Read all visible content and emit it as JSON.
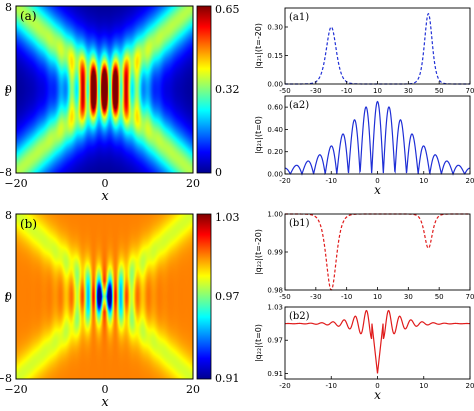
{
  "chart_data": [
    {
      "type": "heatmap",
      "panel_label": "(a)",
      "xlabel": "x",
      "ylabel": "t",
      "xticks": [
        "−20",
        "0",
        "20"
      ],
      "yticks": [
        "8",
        "0",
        "−8"
      ],
      "xlim": [
        -20,
        20
      ],
      "ylim": [
        -8,
        8
      ],
      "colorbar_ticks": [
        "0.65",
        "0.32",
        "0"
      ],
      "colorbar_range": [
        0,
        0.65
      ],
      "colormap": "jet",
      "peak": {
        "x": 0,
        "t": 0,
        "value": 0.65
      },
      "background_value": 0.0,
      "wave_velocities": [
        -2.5,
        2.5
      ],
      "ripple_wavenumber": 2.5
    },
    {
      "type": "heatmap",
      "panel_label": "(b)",
      "xlabel": "x",
      "ylabel": "t",
      "xticks": [
        "−20",
        "0",
        "20"
      ],
      "yticks": [
        "8",
        "0",
        "−8"
      ],
      "xlim": [
        -20,
        20
      ],
      "ylim": [
        -8,
        8
      ],
      "colorbar_ticks": [
        "1.03",
        "0.97",
        "0.91"
      ],
      "colorbar_range": [
        0.91,
        1.03
      ],
      "colormap": "jet",
      "peak": {
        "x": 0,
        "t": 0,
        "value": 0.91
      },
      "background_value": 1.0,
      "wave_velocities": [
        -2.5,
        2.5
      ],
      "ripple_wavenumber": 2.5
    },
    {
      "type": "line",
      "panel_label": "(a1)",
      "line_style": "dashed",
      "color": "#1f2fd6",
      "xlabel": "",
      "ylabel": "|q₂₁|(t=-20)",
      "xlim": [
        -50,
        70
      ],
      "ylim": [
        0,
        0.4
      ],
      "xticks": [
        "-50",
        "-30",
        "-10",
        "10",
        "30",
        "50",
        "70"
      ],
      "yticks": [
        "0.00",
        "0.15",
        "0.30"
      ],
      "x": [
        -50,
        -40,
        -30,
        -25,
        -22,
        -20,
        -18,
        -15,
        -10,
        0,
        10,
        20,
        30,
        35,
        40,
        42,
        43,
        44,
        46,
        50,
        60,
        70
      ],
      "y": [
        0.0,
        0.0,
        0.03,
        0.12,
        0.24,
        0.3,
        0.25,
        0.15,
        0.04,
        0.01,
        0.01,
        0.02,
        0.06,
        0.13,
        0.27,
        0.34,
        0.37,
        0.33,
        0.22,
        0.07,
        0.0,
        0.0
      ]
    },
    {
      "type": "line",
      "panel_label": "(a2)",
      "line_style": "solid",
      "color": "#1f2fd6",
      "xlabel": "x",
      "ylabel": "|q₂₁|(t=0)",
      "xlim": [
        -20,
        20
      ],
      "ylim": [
        0,
        0.7
      ],
      "xticks": [
        "-20",
        "-10",
        "0",
        "10",
        "20"
      ],
      "yticks": [
        "0.00",
        "0.20",
        "0.40",
        "0.60"
      ],
      "x": [
        -20,
        -16,
        -12,
        -10,
        -8,
        -6,
        -4,
        -2.5,
        -1.2,
        0,
        1.2,
        2.5,
        4,
        6,
        8,
        10,
        12,
        16,
        20
      ],
      "y": [
        0.0,
        0.02,
        0.08,
        0.18,
        0.3,
        0.42,
        0.54,
        0.6,
        0.64,
        0.65,
        0.64,
        0.6,
        0.54,
        0.42,
        0.3,
        0.18,
        0.08,
        0.02,
        0.0
      ],
      "envelope_note_values": [
        0.65,
        0.0
      ]
    },
    {
      "type": "line",
      "panel_label": "(b1)",
      "line_style": "dashed",
      "color": "#e01b1b",
      "xlabel": "",
      "ylabel": "|q₂₂|(t=-20)",
      "xlim": [
        -50,
        70
      ],
      "ylim": [
        0.98,
        1.0
      ],
      "xticks": [
        "-50",
        "-30",
        "-10",
        "10",
        "30",
        "50",
        "70"
      ],
      "yticks": [
        "0.98",
        "0.99",
        "1.00"
      ],
      "x": [
        -50,
        -35,
        -28,
        -24,
        -21,
        -20,
        -19,
        -16,
        -12,
        0,
        20,
        34,
        38,
        40,
        41,
        42,
        43,
        44,
        46,
        50,
        70
      ],
      "y": [
        1.0,
        1.0,
        0.998,
        0.992,
        0.983,
        0.98,
        0.983,
        0.993,
        0.999,
        1.0,
        1.0,
        0.999,
        0.997,
        0.994,
        0.992,
        0.991,
        0.992,
        0.994,
        0.998,
        1.0,
        1.0
      ]
    },
    {
      "type": "line",
      "panel_label": "(b2)",
      "line_style": "solid",
      "color": "#e01b1b",
      "xlabel": "x",
      "ylabel": "|q₂₂|(t=0)",
      "xlim": [
        -20,
        20
      ],
      "ylim": [
        0.9,
        1.03
      ],
      "xticks": [
        "-20",
        "-10",
        "0",
        "10",
        "20"
      ],
      "yticks": [
        "0.91",
        "0.97",
        "1.03"
      ],
      "baseline": 1.0,
      "min_value": 0.91,
      "max_value": 1.03
    }
  ]
}
